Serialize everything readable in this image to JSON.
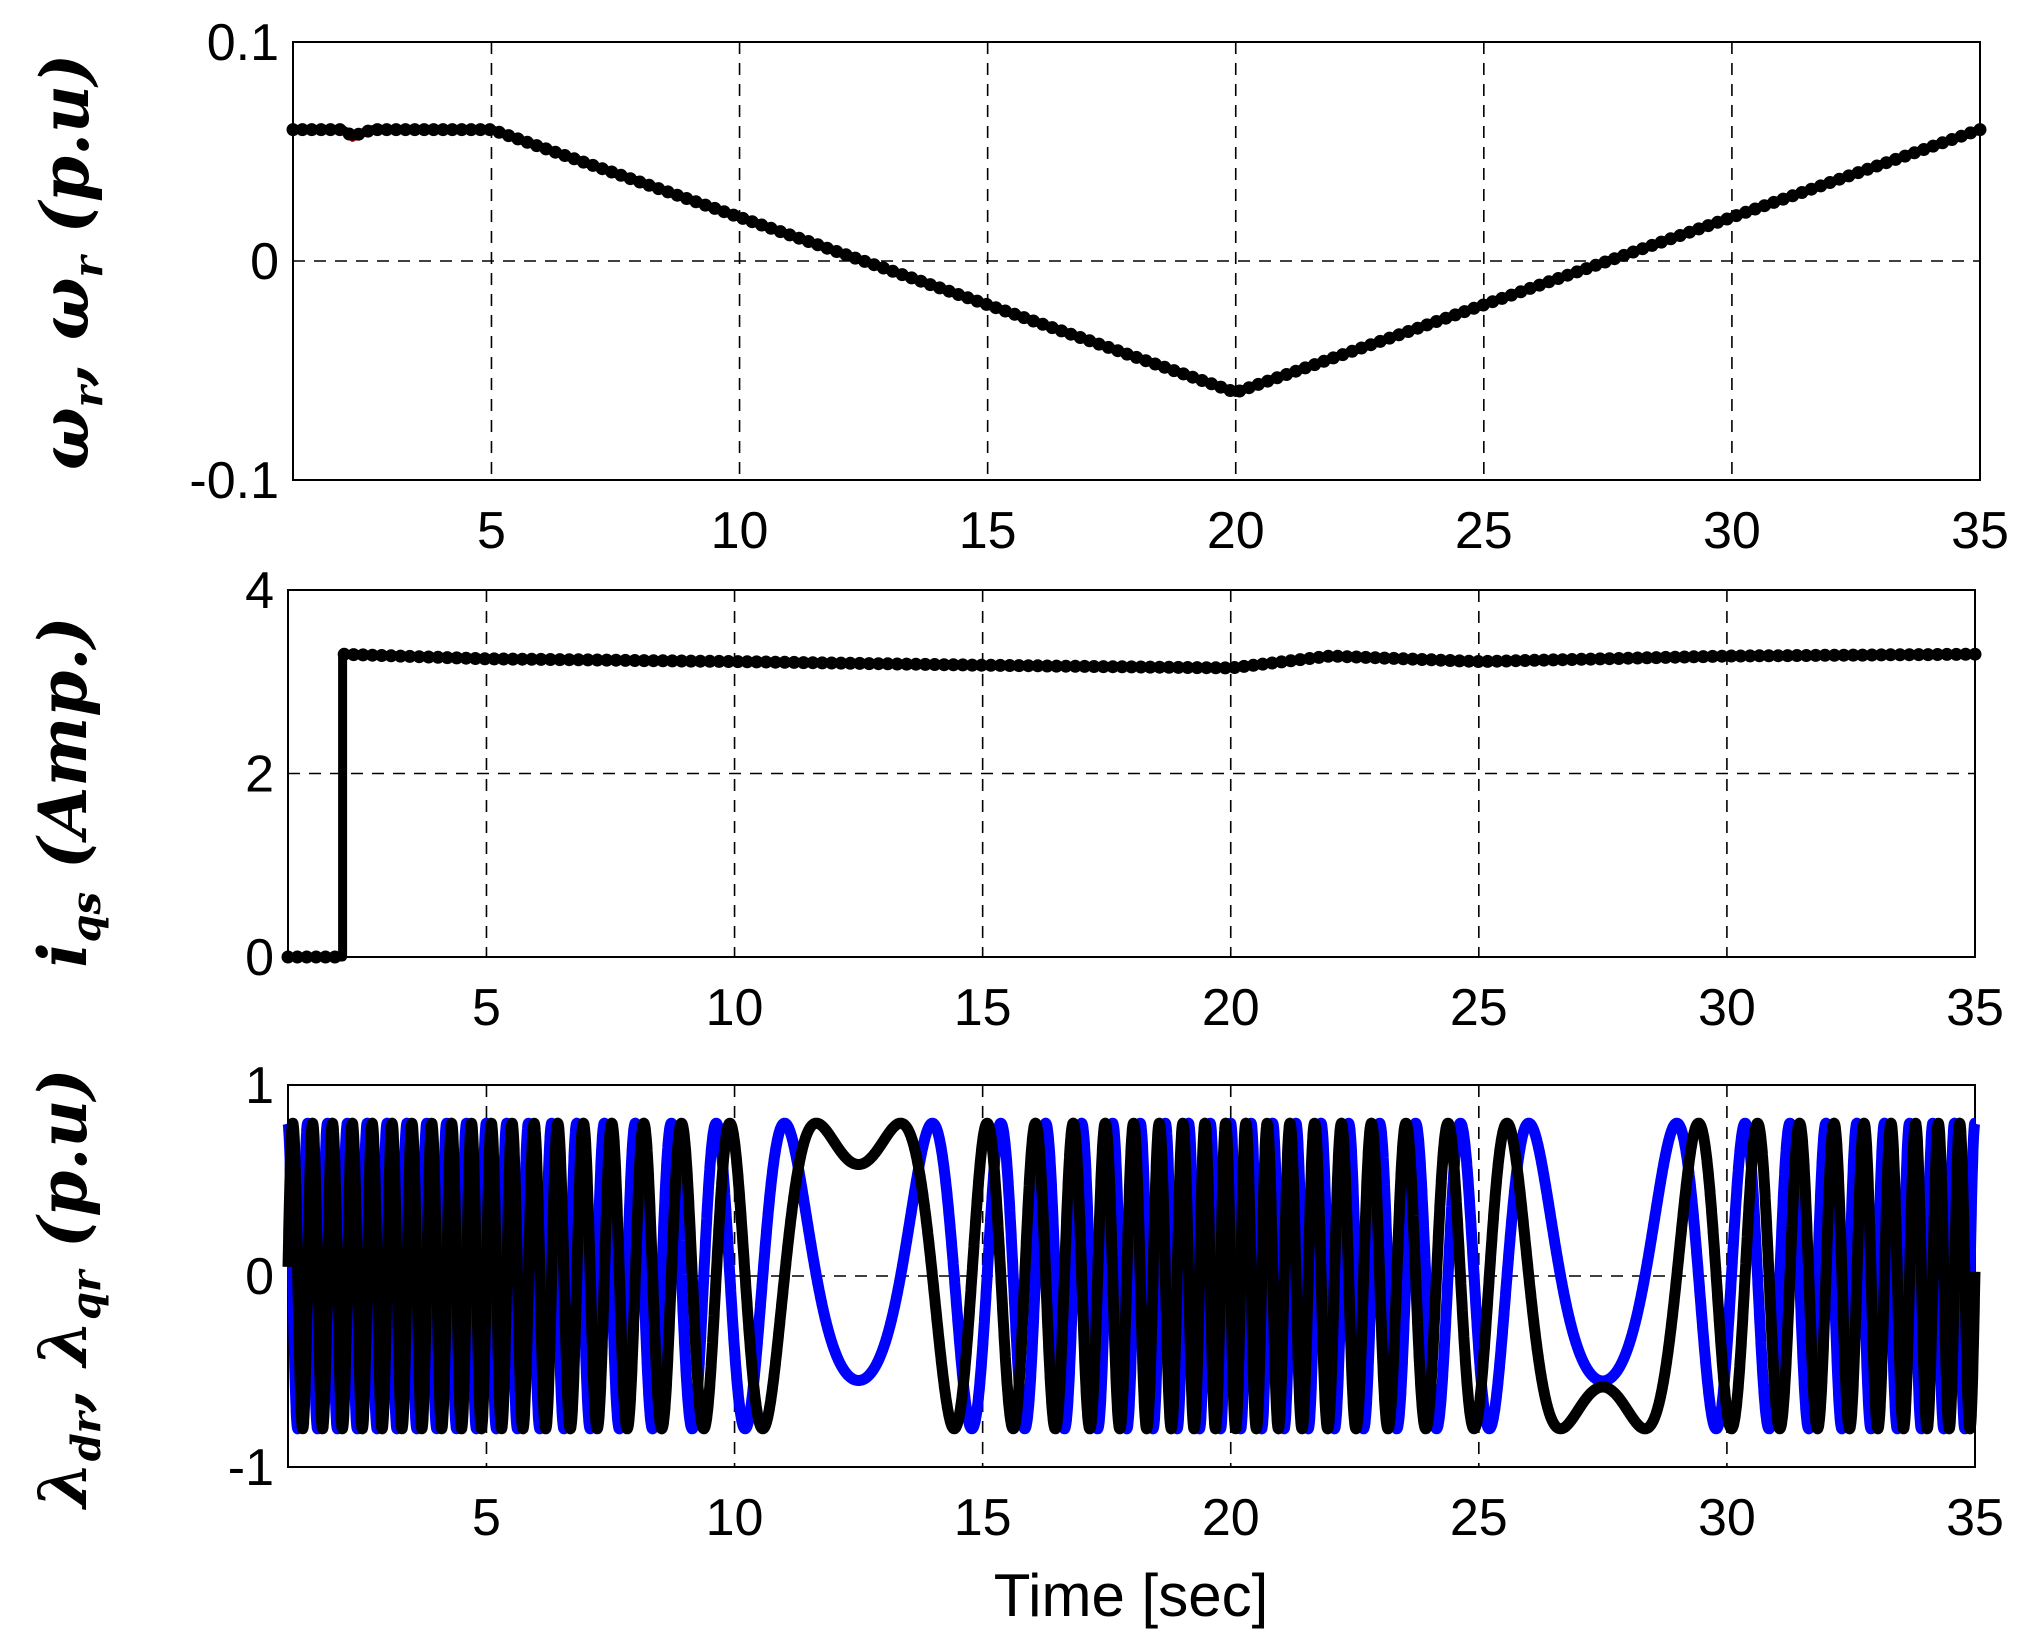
{
  "colors": {
    "black": "#000000",
    "red": "#ff0000",
    "blue": "#0000ff"
  },
  "chart_data": [
    {
      "type": "line",
      "ylabel": "ω_r, ω̂_r (p.u)",
      "xlim": [
        1,
        35
      ],
      "ylim": [
        -0.1,
        0.1
      ],
      "x_ticks": [
        5,
        10,
        15,
        20,
        25,
        30,
        35
      ],
      "y_ticks": [
        -0.1,
        0,
        0.1
      ],
      "y_tick_labels": [
        "-0.1",
        "0",
        "0.1"
      ],
      "grid": true,
      "series": [
        {
          "x": [
            1,
            2,
            2.2,
            2.6,
            5,
            20,
            35
          ],
          "y": [
            0.06,
            0.06,
            0.056,
            0.06,
            0.06,
            -0.06,
            0.06
          ],
          "color": "#ff0000"
        },
        {
          "x": [
            1,
            2,
            2.2,
            2.6,
            5,
            20,
            35
          ],
          "y": [
            0.06,
            0.06,
            0.057,
            0.06,
            0.06,
            -0.06,
            0.06
          ],
          "color": "#000000",
          "marker": "dot"
        }
      ]
    },
    {
      "type": "line",
      "ylabel": "i_qs (Amp.)",
      "xlim": [
        1,
        35
      ],
      "ylim": [
        0,
        4
      ],
      "x_ticks": [
        5,
        10,
        15,
        20,
        25,
        30,
        35
      ],
      "y_ticks": [
        0,
        2,
        4
      ],
      "y_tick_labels": [
        "0",
        "2",
        "4"
      ],
      "grid": true,
      "series": [
        {
          "x": [
            1,
            2.1,
            2.1,
            5,
            10,
            15,
            20,
            22,
            25,
            30,
            35
          ],
          "y": [
            0,
            0,
            3.3,
            3.25,
            3.22,
            3.18,
            3.15,
            3.28,
            3.22,
            3.28,
            3.3
          ],
          "color": "#000000",
          "marker": "dot"
        }
      ]
    },
    {
      "type": "line",
      "ylabel": "λ̂_dr, λ̂_qr (p.u)",
      "xlabel": "Time [sec]",
      "xlim": [
        1,
        35
      ],
      "ylim": [
        -1,
        1
      ],
      "x_ticks": [
        5,
        10,
        15,
        20,
        25,
        30,
        35
      ],
      "y_ticks": [
        -1,
        0,
        1
      ],
      "y_tick_labels": [
        "-1",
        "0",
        "1"
      ],
      "grid": true,
      "amplitude": 0.8,
      "slip_speed_rad_per_s": {
        "x": [
          1,
          2,
          5,
          20,
          35
        ],
        "y": [
          15.7,
          15.7,
          15.7,
          -15.7,
          15.7
        ]
      },
      "series": [
        {
          "name": "λ̂_dr",
          "color": "#0000ff",
          "phase": "cosine"
        },
        {
          "name": "λ̂_qr",
          "color": "#000000",
          "phase": "sine"
        }
      ]
    }
  ]
}
